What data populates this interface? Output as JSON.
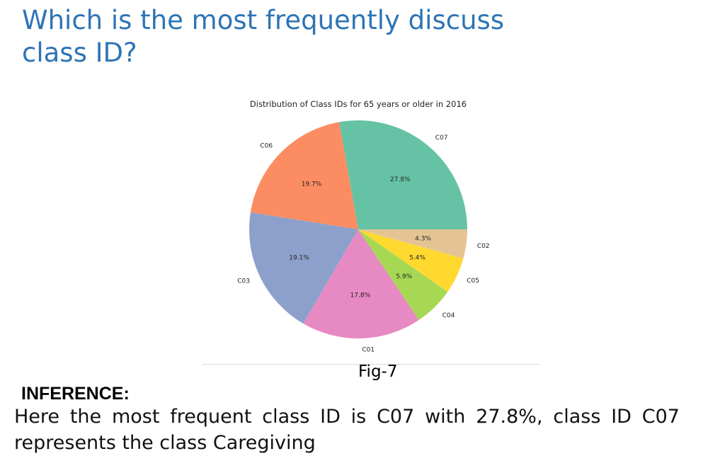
{
  "slide": {
    "title_line1": "Which is the most frequently discussec",
    "title_line2": "class ID?",
    "caption": "Fig-7",
    "inference_heading": "INFERENCE:",
    "inference_text": "Here the most frequent class ID is C07 with 27.8%, class ID C07 represents the class Caregiving"
  },
  "chart_data": {
    "type": "pie",
    "title": "Distribution of Class IDs for 65 years or older in 2016",
    "slices": [
      {
        "label": "C07",
        "value": 27.8,
        "pct_label": "27.8%",
        "color": "#66C2A5"
      },
      {
        "label": "C06",
        "value": 19.7,
        "pct_label": "19.7%",
        "color": "#FC8D62"
      },
      {
        "label": "C03",
        "value": 19.1,
        "pct_label": "19.1%",
        "color": "#8DA0CB"
      },
      {
        "label": "C01",
        "value": 17.8,
        "pct_label": "17.8%",
        "color": "#E78AC3"
      },
      {
        "label": "C04",
        "value": 5.9,
        "pct_label": "5.9%",
        "color": "#A6D854"
      },
      {
        "label": "C05",
        "value": 5.4,
        "pct_label": "5.4%",
        "color": "#FFD92F"
      },
      {
        "label": "C02",
        "value": 4.3,
        "pct_label": "4.3%",
        "color": "#E5C494"
      }
    ],
    "start_angle_deg": 0,
    "direction": "counterclockwise",
    "legend": "none"
  }
}
